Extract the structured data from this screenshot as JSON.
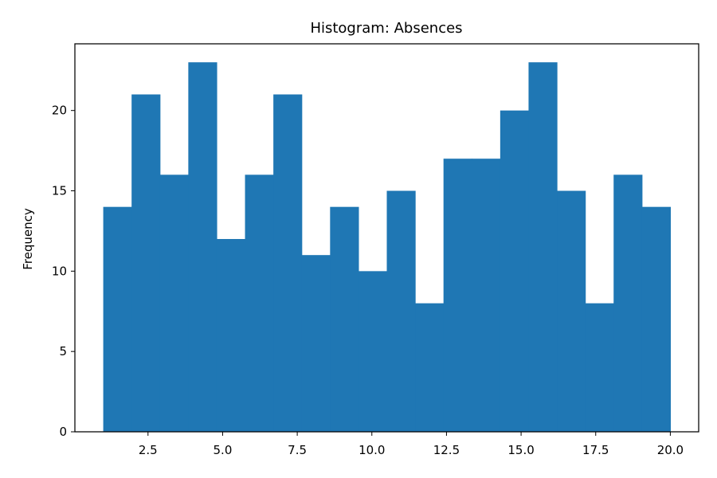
{
  "chart_data": {
    "type": "bar",
    "title": "Histogram: Absences",
    "xlabel": "",
    "ylabel": "Frequency",
    "bin_start": 1,
    "bin_width": 0.95,
    "bin_edges": [
      1.0,
      1.95,
      2.9,
      3.85,
      4.8,
      5.75,
      6.7,
      7.65,
      8.6,
      9.55,
      10.5,
      11.45,
      12.4,
      13.35,
      14.3,
      15.25,
      16.2,
      17.15,
      18.1,
      19.05,
      20.0
    ],
    "values": [
      14,
      21,
      16,
      23,
      12,
      16,
      21,
      11,
      14,
      10,
      15,
      8,
      17,
      17,
      20,
      23,
      15,
      8,
      16,
      14
    ],
    "xlim": [
      0.05,
      20.95
    ],
    "ylim": [
      0,
      24.15
    ],
    "xticks": [
      "2.5",
      "5.0",
      "7.5",
      "10.0",
      "12.5",
      "15.0",
      "17.5",
      "20.0"
    ],
    "yticks": [
      "0",
      "5",
      "10",
      "15",
      "20"
    ],
    "bar_color": "#1f77b4",
    "grid": false,
    "legend": "none"
  }
}
